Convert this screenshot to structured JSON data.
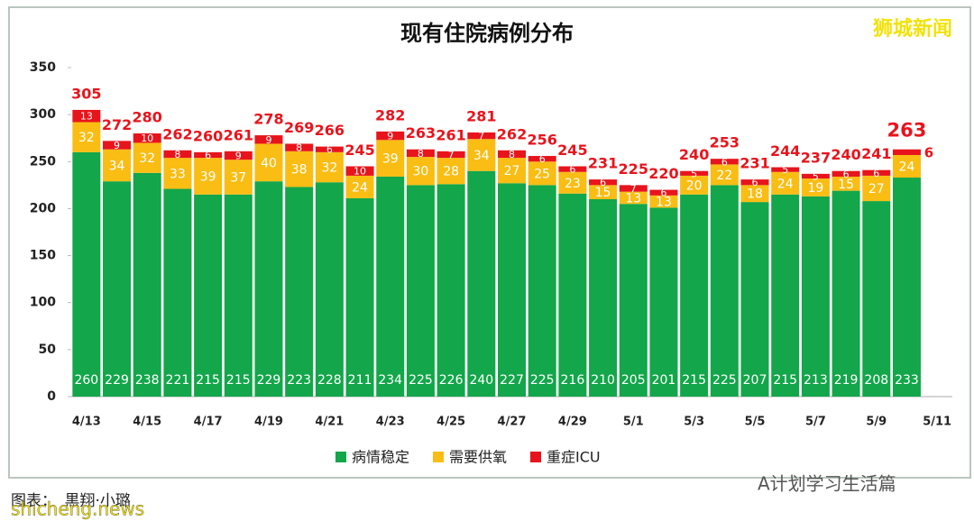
{
  "chart_data": {
    "type": "stacked-bar",
    "title": "现有住院病例分布",
    "watermark": "狮城新闻",
    "categories": [
      "4/13",
      null,
      "4/15",
      null,
      "4/17",
      null,
      "4/19",
      null,
      "4/21",
      null,
      "4/23",
      null,
      "4/25",
      null,
      "4/27",
      null,
      "4/29",
      null,
      "5/1",
      null,
      "5/3",
      null,
      "5/5",
      null,
      "5/7",
      null,
      "5/9",
      null,
      "5/11"
    ],
    "series": [
      {
        "name": "病情稳定",
        "color": "#13a64a",
        "values": [
          260,
          229,
          238,
          221,
          215,
          215,
          229,
          223,
          228,
          211,
          234,
          225,
          226,
          240,
          227,
          225,
          216,
          210,
          205,
          201,
          215,
          225,
          207,
          215,
          213,
          219,
          208,
          233,
          null
        ]
      },
      {
        "name": "需要供氧",
        "color": "#f9bd14",
        "values": [
          32,
          34,
          32,
          33,
          39,
          37,
          40,
          38,
          32,
          24,
          39,
          30,
          28,
          34,
          27,
          25,
          23,
          15,
          13,
          13,
          20,
          22,
          18,
          24,
          19,
          15,
          27,
          24,
          null
        ]
      },
      {
        "name": "重症ICU",
        "color": "#e8141c",
        "values": [
          13,
          9,
          10,
          8,
          6,
          9,
          9,
          8,
          6,
          10,
          9,
          8,
          7,
          7,
          8,
          6,
          6,
          6,
          7,
          6,
          5,
          6,
          6,
          5,
          5,
          6,
          6,
          6,
          null
        ]
      }
    ],
    "totals": [
      305,
      272,
      280,
      262,
      260,
      261,
      278,
      269,
      266,
      245,
      282,
      263,
      261,
      281,
      262,
      256,
      245,
      231,
      225,
      220,
      240,
      253,
      231,
      244,
      237,
      240,
      241,
      263,
      null
    ],
    "ylim": [
      0,
      350
    ],
    "yticks": [
      0,
      50,
      100,
      150,
      200,
      250,
      300,
      350
    ],
    "credit": "图表：　黒翔·小璐",
    "footer_site": "shicheng.news",
    "footer_account": "A计划学习生活篇"
  }
}
